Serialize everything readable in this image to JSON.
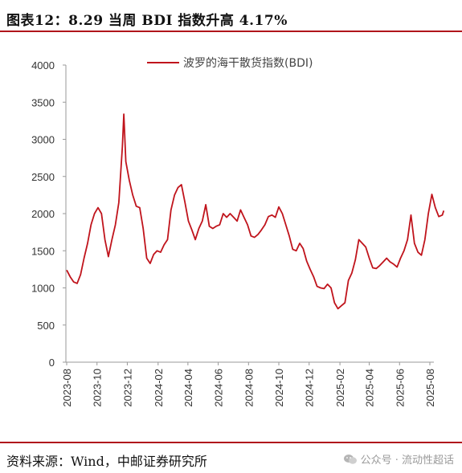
{
  "header": {
    "title": "图表12：8.29 当周 BDI 指数升高 4.17%"
  },
  "footer": {
    "source": "资料来源：Wind，中邮证券研究所",
    "watermark": "公众号 · 流动性超话"
  },
  "chart_data": {
    "type": "line",
    "title": "",
    "xlabel": "",
    "ylabel": "",
    "ylim": [
      0,
      4000
    ],
    "yticks": [
      0,
      500,
      1000,
      1500,
      2000,
      2500,
      3000,
      3500,
      4000
    ],
    "xticks": [
      "2023-08",
      "2023-10",
      "2023-12",
      "2024-02",
      "2024-04",
      "2024-06",
      "2024-08",
      "2024-10",
      "2024-12",
      "2025-02",
      "2025-04",
      "2025-06",
      "2025-08"
    ],
    "legend_position": "top-right",
    "grid": false,
    "color": "#c0141c",
    "series": [
      {
        "name": "波罗的海干散货指数(BDI)",
        "x": [
          "2023-08-01",
          "2023-08-08",
          "2023-08-15",
          "2023-08-22",
          "2023-08-29",
          "2023-09-05",
          "2023-09-12",
          "2023-09-19",
          "2023-09-26",
          "2023-10-03",
          "2023-10-10",
          "2023-10-17",
          "2023-10-24",
          "2023-10-31",
          "2023-11-07",
          "2023-11-14",
          "2023-11-21",
          "2023-11-24",
          "2023-11-28",
          "2023-12-05",
          "2023-12-12",
          "2023-12-19",
          "2023-12-26",
          "2024-01-02",
          "2024-01-09",
          "2024-01-16",
          "2024-01-23",
          "2024-01-30",
          "2024-02-06",
          "2024-02-13",
          "2024-02-20",
          "2024-02-27",
          "2024-03-05",
          "2024-03-12",
          "2024-03-19",
          "2024-03-26",
          "2024-04-02",
          "2024-04-09",
          "2024-04-16",
          "2024-04-23",
          "2024-04-30",
          "2024-05-07",
          "2024-05-14",
          "2024-05-21",
          "2024-05-28",
          "2024-06-04",
          "2024-06-11",
          "2024-06-18",
          "2024-06-25",
          "2024-07-02",
          "2024-07-09",
          "2024-07-16",
          "2024-07-23",
          "2024-07-30",
          "2024-08-06",
          "2024-08-13",
          "2024-08-20",
          "2024-08-27",
          "2024-09-03",
          "2024-09-10",
          "2024-09-17",
          "2024-09-24",
          "2024-10-01",
          "2024-10-08",
          "2024-10-15",
          "2024-10-22",
          "2024-10-29",
          "2024-11-05",
          "2024-11-12",
          "2024-11-19",
          "2024-11-26",
          "2024-12-03",
          "2024-12-10",
          "2024-12-17",
          "2024-12-24",
          "2024-12-31",
          "2025-01-07",
          "2025-01-14",
          "2025-01-21",
          "2025-01-28",
          "2025-02-04",
          "2025-02-11",
          "2025-02-18",
          "2025-02-25",
          "2025-03-04",
          "2025-03-11",
          "2025-03-18",
          "2025-03-25",
          "2025-04-01",
          "2025-04-08",
          "2025-04-15",
          "2025-04-22",
          "2025-04-29",
          "2025-05-06",
          "2025-05-13",
          "2025-05-20",
          "2025-05-27",
          "2025-06-03",
          "2025-06-10",
          "2025-06-17",
          "2025-06-24",
          "2025-07-01",
          "2025-07-08",
          "2025-07-15",
          "2025-07-22",
          "2025-07-29",
          "2025-08-05",
          "2025-08-12",
          "2025-08-19",
          "2025-08-26",
          "2025-08-29"
        ],
        "values": [
          1240,
          1150,
          1080,
          1060,
          1180,
          1400,
          1600,
          1850,
          2000,
          2080,
          2000,
          1650,
          1420,
          1650,
          1850,
          2150,
          2900,
          3340,
          2700,
          2450,
          2250,
          2100,
          2080,
          1800,
          1400,
          1330,
          1450,
          1500,
          1480,
          1580,
          1650,
          2050,
          2250,
          2350,
          2390,
          2150,
          1900,
          1780,
          1650,
          1800,
          1900,
          2120,
          1830,
          1800,
          1830,
          1850,
          2000,
          1950,
          2000,
          1950,
          1900,
          2050,
          1950,
          1850,
          1700,
          1680,
          1720,
          1780,
          1850,
          1960,
          1980,
          1950,
          2090,
          2000,
          1850,
          1700,
          1520,
          1500,
          1600,
          1530,
          1360,
          1250,
          1150,
          1020,
          1000,
          990,
          1050,
          1000,
          800,
          720,
          760,
          800,
          1100,
          1200,
          1380,
          1650,
          1600,
          1550,
          1400,
          1270,
          1260,
          1300,
          1350,
          1400,
          1350,
          1320,
          1280,
          1400,
          1500,
          1650,
          1980,
          1600,
          1480,
          1440,
          1650,
          2000,
          2260,
          2080,
          1960,
          1980,
          2040
        ]
      }
    ]
  }
}
